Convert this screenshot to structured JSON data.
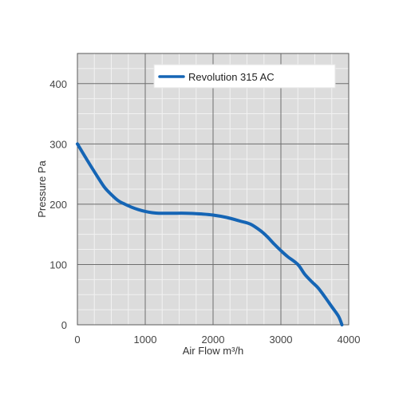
{
  "chart_data": {
    "type": "line",
    "title": "",
    "xlabel": "Air Flow m³/h",
    "ylabel": "Pressure Pa",
    "xlim": [
      0,
      4000
    ],
    "ylim": [
      0,
      450
    ],
    "x_ticks": [
      0,
      1000,
      2000,
      3000,
      4000
    ],
    "y_ticks": [
      0,
      100,
      200,
      300,
      400
    ],
    "grid": true,
    "minor_grid": true,
    "legend_position": "top-center",
    "series": [
      {
        "name": "Revolution 315 AC",
        "color": "#1565b5",
        "x": [
          0,
          150,
          300,
          400,
          500,
          600,
          700,
          800,
          900,
          1000,
          1100,
          1200,
          1400,
          1600,
          1800,
          2000,
          2200,
          2400,
          2550,
          2700,
          2800,
          2900,
          3000,
          3100,
          3250,
          3350,
          3450,
          3550,
          3650,
          3750,
          3850,
          3900
        ],
        "y": [
          300,
          272,
          245,
          228,
          216,
          206,
          200,
          195,
          191,
          188,
          186,
          185,
          185,
          185,
          184,
          182,
          178,
          172,
          167,
          156,
          146,
          134,
          123,
          113,
          100,
          84,
          72,
          61,
          46,
          30,
          14,
          0
        ]
      }
    ]
  }
}
